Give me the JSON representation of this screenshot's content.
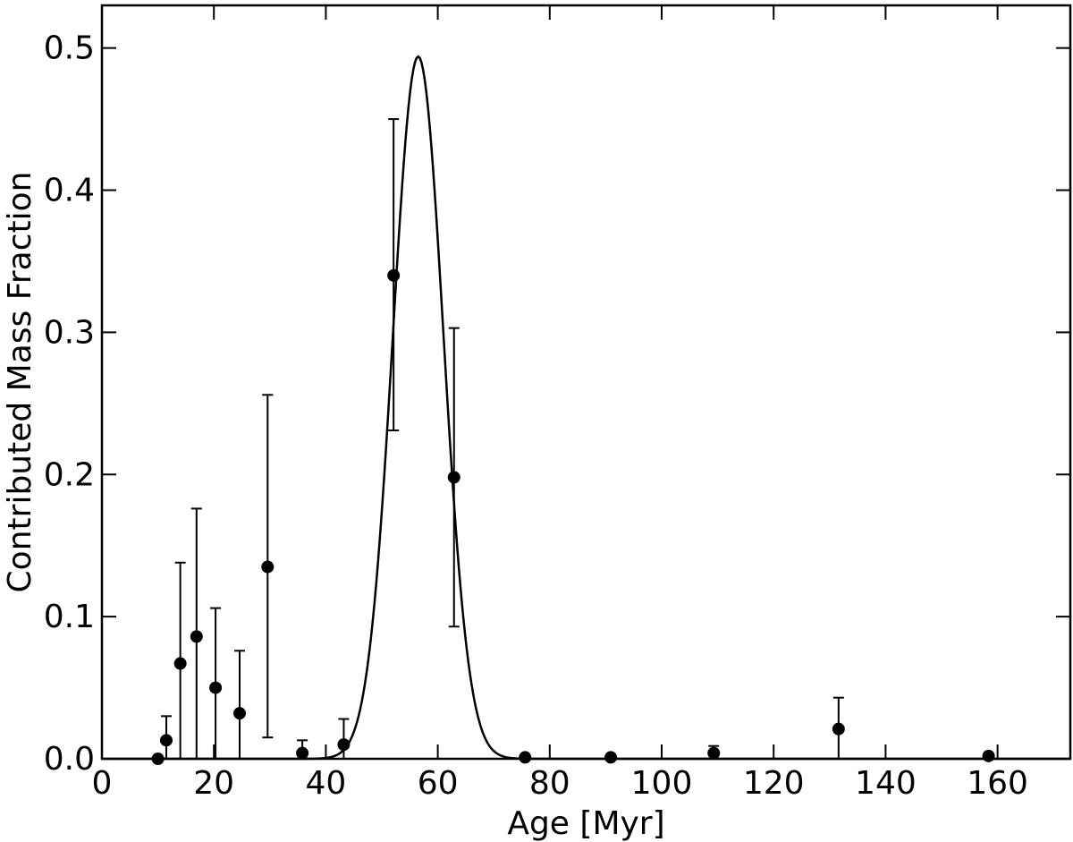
{
  "chart_data": {
    "type": "scatter",
    "xlabel": "Age [Myr]",
    "ylabel": "Contributed Mass Fraction",
    "xlim": [
      0,
      173
    ],
    "ylim": [
      0,
      0.53
    ],
    "x_ticks": [
      0,
      20,
      40,
      60,
      80,
      100,
      120,
      140,
      160
    ],
    "x_tick_labels": [
      "0",
      "20",
      "40",
      "60",
      "80",
      "100",
      "120",
      "140",
      "160"
    ],
    "y_ticks": [
      0.0,
      0.1,
      0.2,
      0.3,
      0.4,
      0.5
    ],
    "y_tick_labels": [
      "0.0",
      "0.1",
      "0.2",
      "0.3",
      "0.4",
      "0.5"
    ],
    "grid": false,
    "legend": "none",
    "points": {
      "x": [
        10,
        11.5,
        14,
        16.9,
        20.3,
        24.6,
        29.6,
        35.8,
        43.2,
        52.1,
        62.9,
        75.6,
        90.9,
        109.3,
        131.6,
        158.4
      ],
      "y": [
        0.0,
        0.013,
        0.067,
        0.086,
        0.05,
        0.032,
        0.135,
        0.004,
        0.01,
        0.34,
        0.198,
        0.001,
        0.001,
        0.004,
        0.021,
        0.002
      ],
      "err_high": [
        null,
        0.03,
        0.138,
        0.176,
        0.106,
        0.076,
        0.256,
        0.013,
        0.028,
        0.45,
        0.303,
        null,
        null,
        0.009,
        0.043,
        null
      ],
      "err_low": [
        null,
        0.0,
        0.0,
        0.0,
        0.0,
        0.0,
        0.015,
        0.0,
        0.0,
        0.231,
        0.093,
        null,
        null,
        0.0,
        0.0,
        null
      ]
    },
    "fit_curve": {
      "shape": "gaussian",
      "peak_x": 56.5,
      "peak_y": 0.494,
      "sigma": 4.5,
      "x_range": [
        0,
        173
      ]
    },
    "colors": {
      "marker": "#000000",
      "line": "#000000"
    }
  }
}
